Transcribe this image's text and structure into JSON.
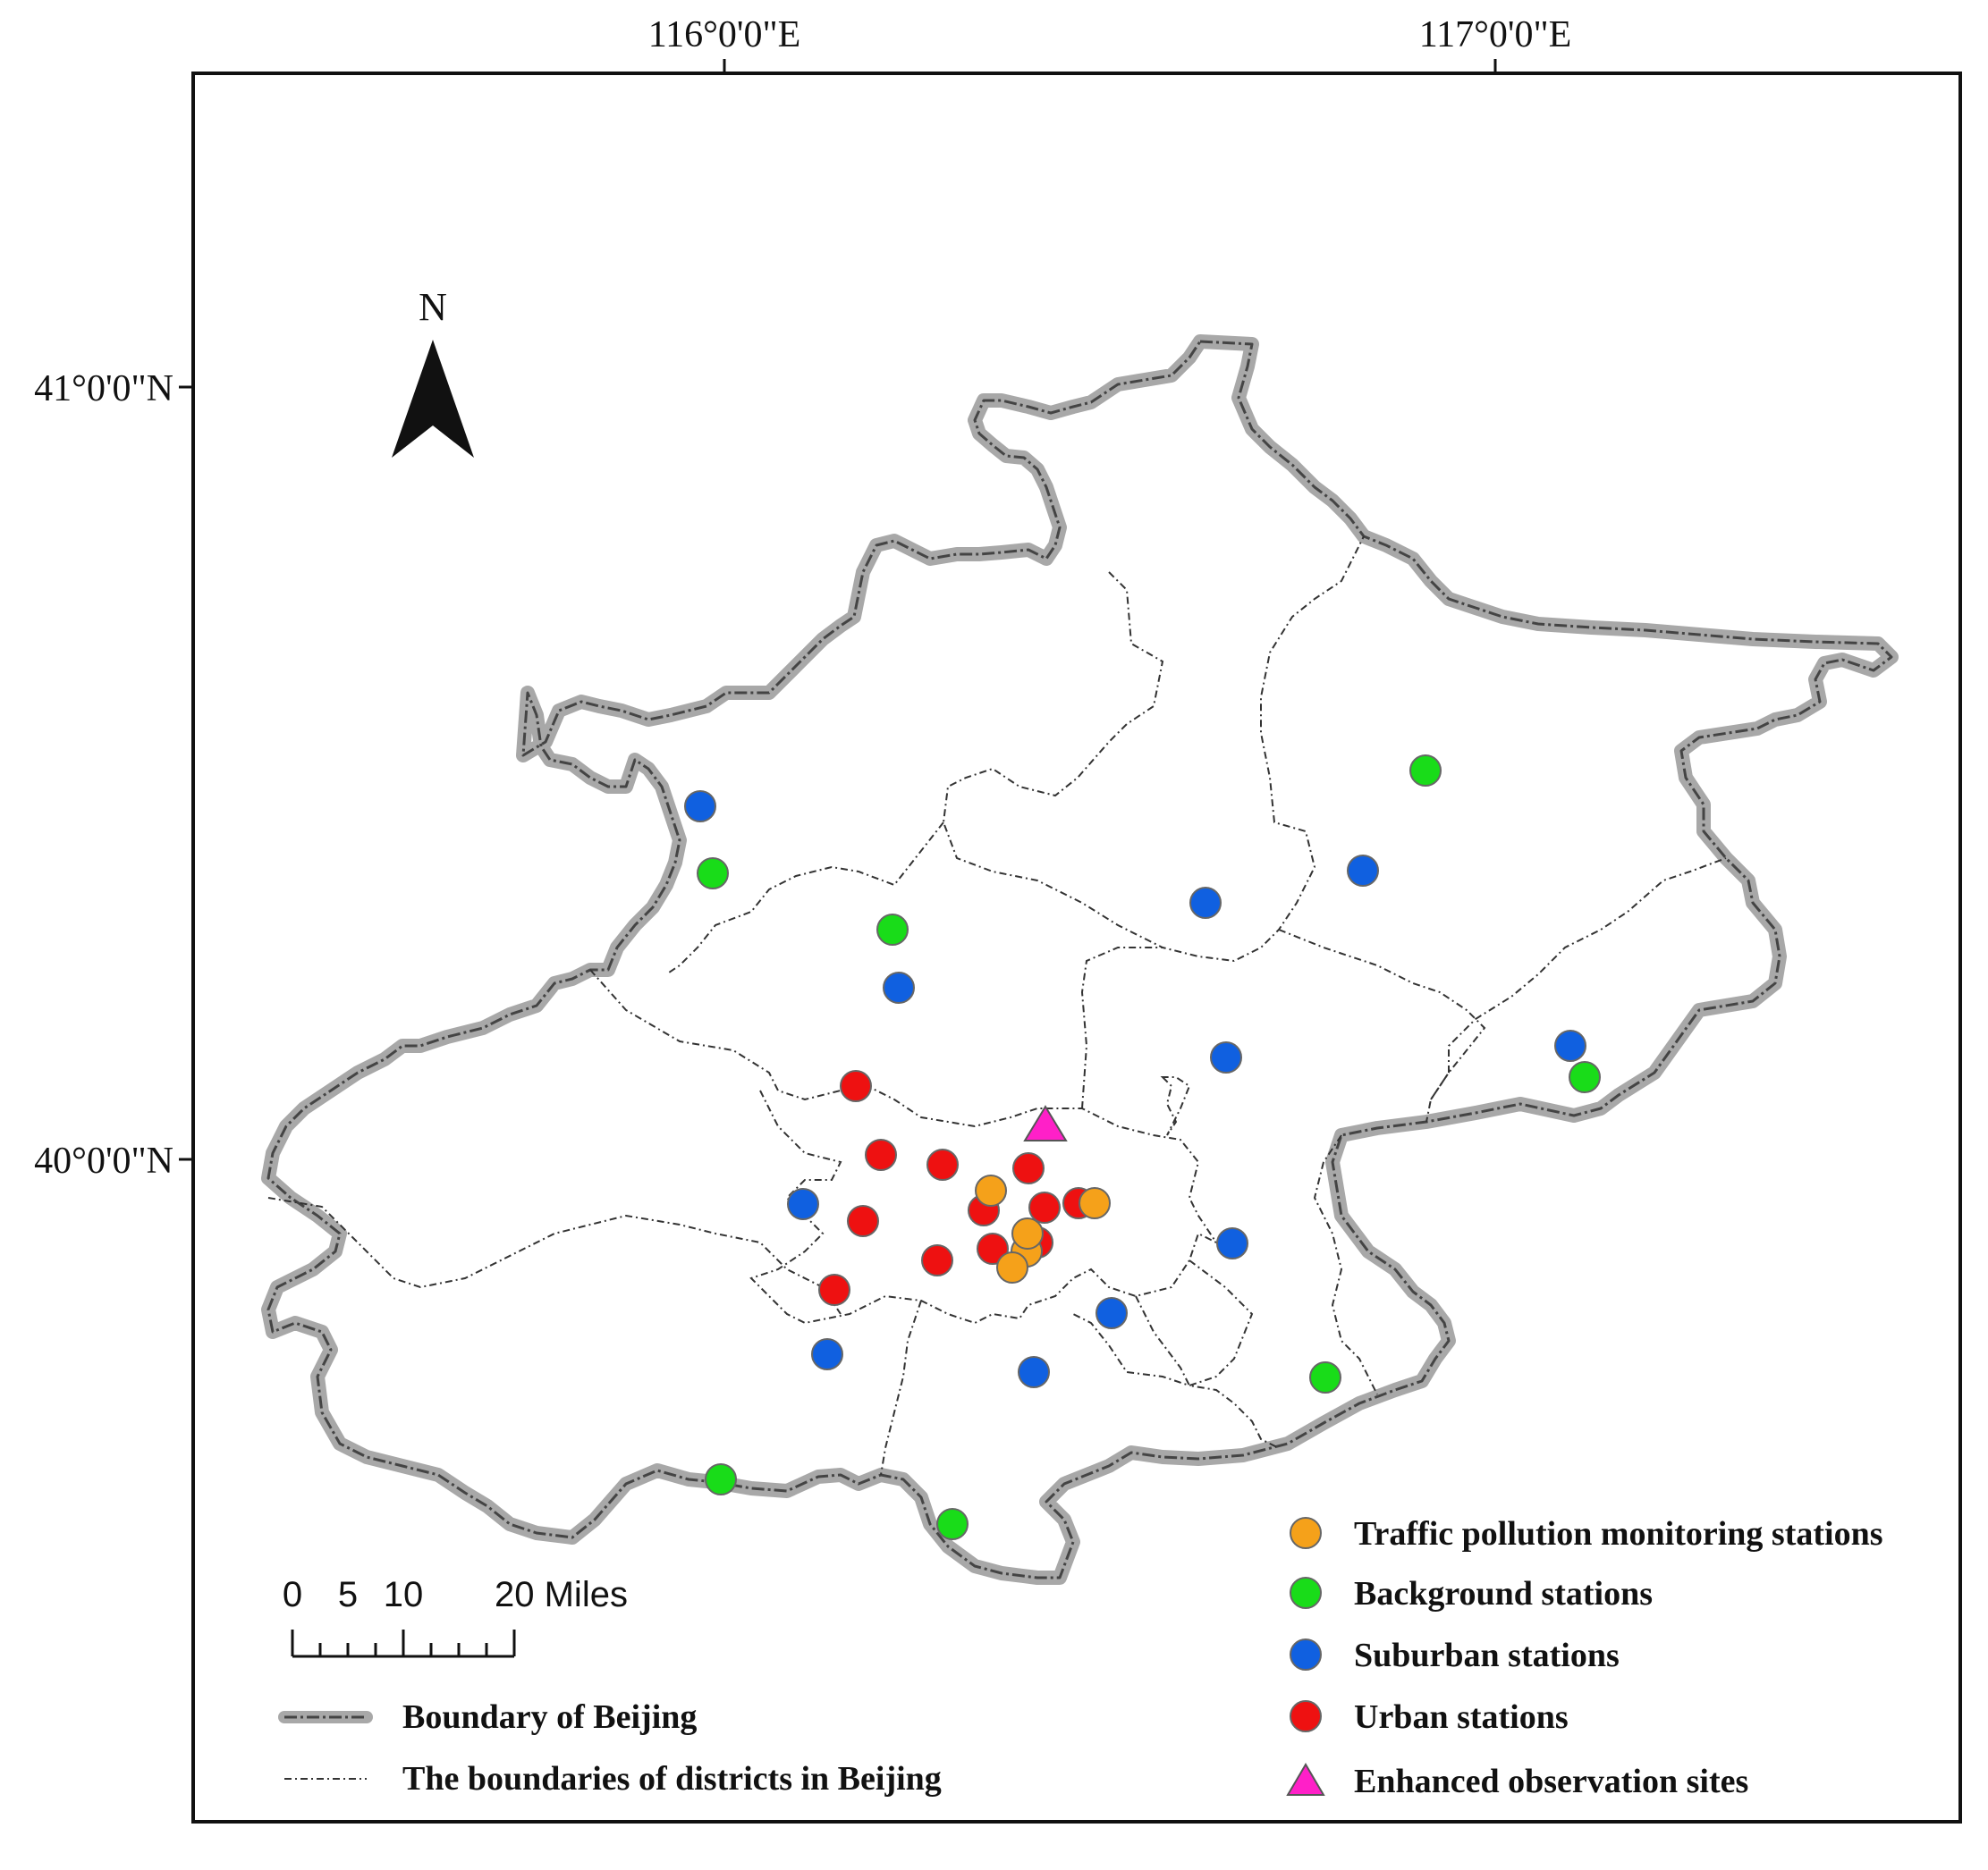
{
  "axes": {
    "lon_ticks": [
      "116°0'0\"E",
      "117°0'0\"E"
    ],
    "lat_ticks": [
      "41°0'0\"N",
      "40°0'0\"N"
    ]
  },
  "north_arrow": {
    "label": "N"
  },
  "scale_bar": {
    "ticks": [
      "0",
      "5",
      "10",
      "20 Miles"
    ]
  },
  "legend_left": {
    "boundary_beijing": "Boundary of Beijing",
    "boundary_districts": "The boundaries of districts in Beijing"
  },
  "legend_right": [
    {
      "label": "Traffic pollution monitoring stations",
      "color": "#f5a11a",
      "symbol": "circle"
    },
    {
      "label": "Background stations",
      "color": "#19dc19",
      "symbol": "circle"
    },
    {
      "label": "Suburban stations",
      "color": "#1060e0",
      "symbol": "circle"
    },
    {
      "label": "Urban stations",
      "color": "#ee1111",
      "symbol": "circle"
    },
    {
      "label": "Enhanced observation sites",
      "color": "#ff20c8",
      "symbol": "triangle"
    }
  ]
}
